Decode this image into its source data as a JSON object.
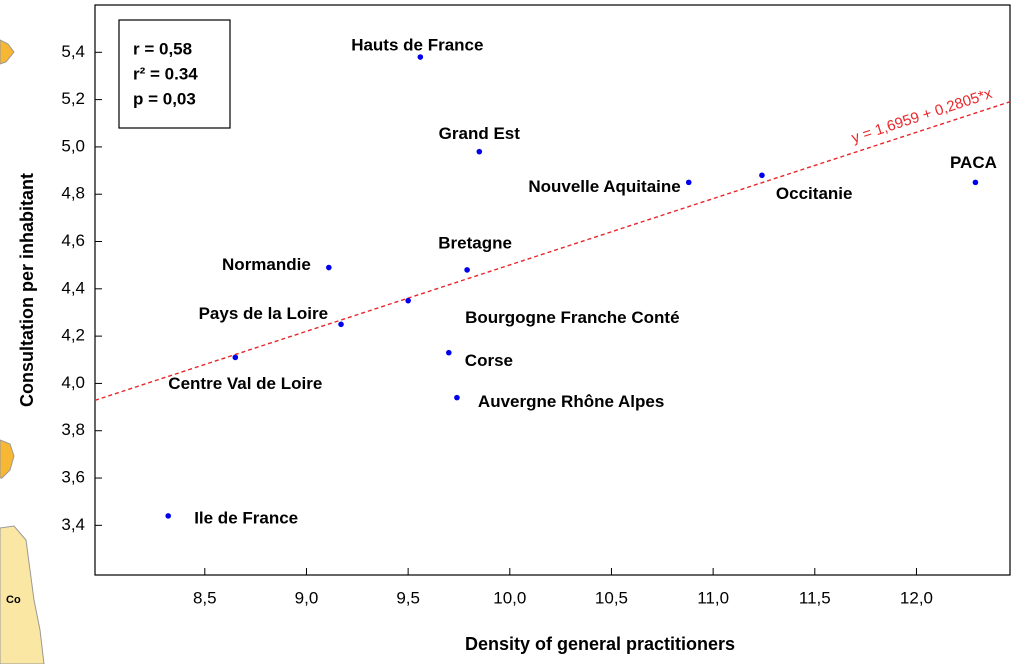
{
  "map_label": "Co",
  "chart_data": {
    "type": "scatter",
    "x_label": "Density of general practitioners",
    "y_label": "Consultation per inhabitant",
    "stats": [
      "r =  0,58",
      "r² = 0.34",
      "p = 0,03"
    ],
    "labels": [
      "Hauts de France",
      "Grand Est",
      "Nouvelle Aquitaine",
      "Occitanie",
      "PACA",
      "Normandie",
      "Bretagne",
      "Bourgogne Franche Conté",
      "Pays de la Loire",
      "Centre Val de Loire",
      "Corse",
      "Auvergne Rhône Alpes",
      "Ile de France"
    ],
    "x": [
      9.56,
      9.85,
      10.88,
      11.24,
      12.29,
      9.11,
      9.79,
      9.5,
      9.17,
      8.65,
      9.7,
      9.74,
      8.32
    ],
    "y": [
      5.38,
      4.98,
      4.85,
      4.88,
      4.85,
      4.49,
      4.48,
      4.35,
      4.25,
      4.11,
      4.13,
      3.94,
      3.44
    ],
    "color": "#0000ee",
    "trendline": {
      "intercept": 1.6959,
      "slope": 0.2805,
      "label": "y = 1,6959 + 0,2805*x",
      "color": "#e8262b"
    },
    "xlim": [
      7.96,
      12.46
    ],
    "ylim": [
      3.19,
      5.6
    ],
    "xticks": [
      {
        "value": 8.5,
        "label": "8,5"
      },
      {
        "value": 9,
        "label": "9,0"
      },
      {
        "value": 9.5,
        "label": "9,5"
      },
      {
        "value": 10,
        "label": "10,0"
      },
      {
        "value": 10.5,
        "label": "10,5"
      },
      {
        "value": 11,
        "label": "11,0"
      },
      {
        "value": 11.5,
        "label": "11,5"
      },
      {
        "value": 12,
        "label": "12,0"
      }
    ],
    "yticks": [
      {
        "value": 3.4,
        "label": "3,4"
      },
      {
        "value": 3.6,
        "label": "3,6"
      },
      {
        "value": 3.8,
        "label": "3,8"
      },
      {
        "value": 4,
        "label": "4,0"
      },
      {
        "value": 4.2,
        "label": "4,2"
      },
      {
        "value": 4.4,
        "label": "4,4"
      },
      {
        "value": 4.6,
        "label": "4,6"
      },
      {
        "value": 4.8,
        "label": "4,8"
      },
      {
        "value": 5,
        "label": "5,0"
      },
      {
        "value": 5.2,
        "label": "5,2"
      },
      {
        "value": 5.4,
        "label": "5,4"
      }
    ]
  }
}
